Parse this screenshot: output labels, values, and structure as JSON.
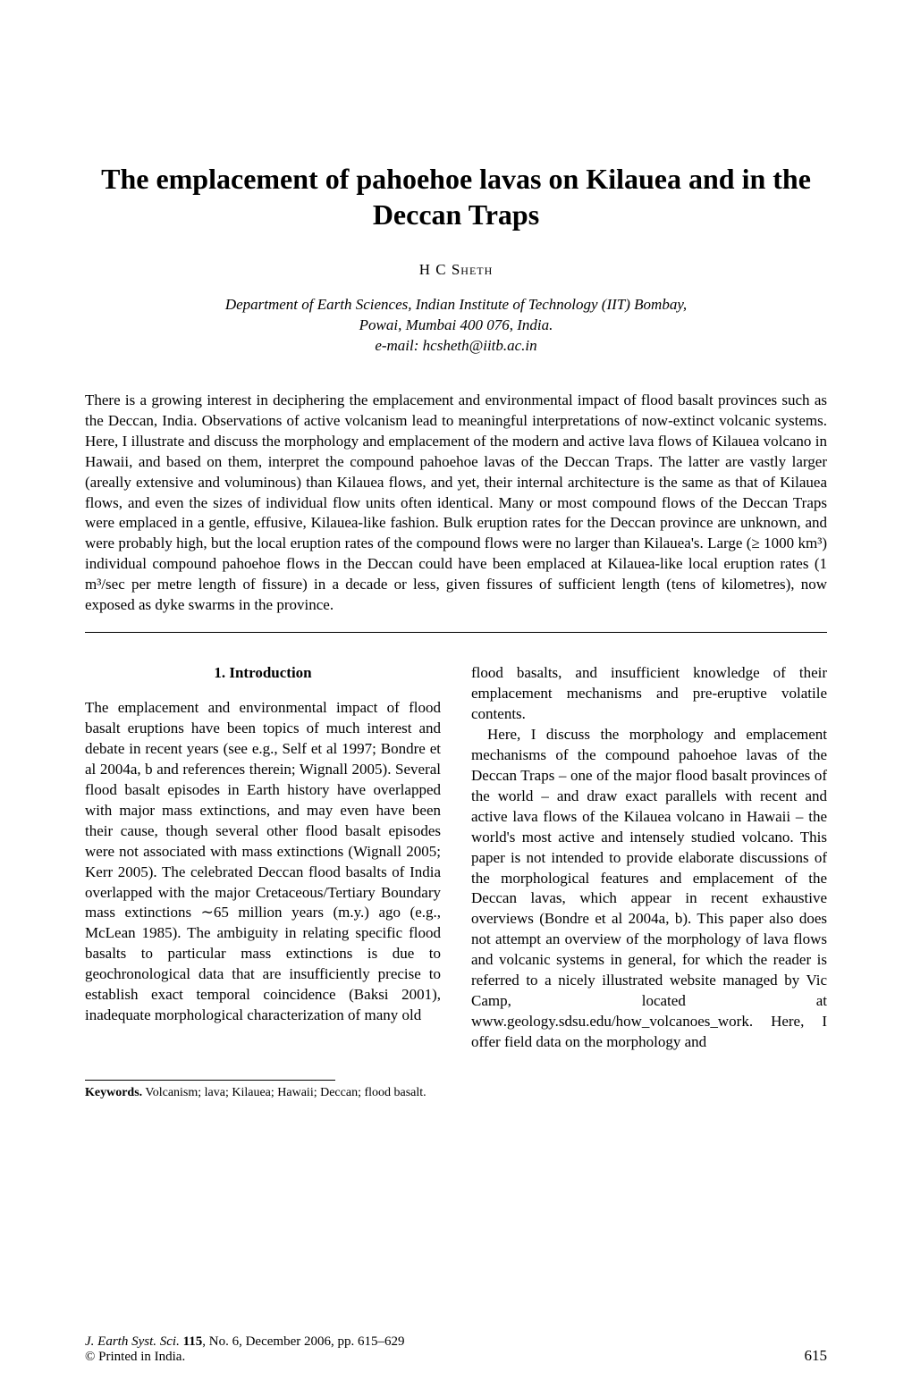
{
  "title": "The emplacement of pahoehoe lavas on Kilauea and in the Deccan Traps",
  "author": "H C Sheth",
  "affiliation_line1": "Department of Earth Sciences, Indian Institute of Technology (IIT) Bombay,",
  "affiliation_line2": "Powai, Mumbai 400 076, India.",
  "affiliation_email": "e-mail: hcsheth@iitb.ac.in",
  "abstract": "There is a growing interest in deciphering the emplacement and environmental impact of flood basalt provinces such as the Deccan, India. Observations of active volcanism lead to meaningful interpretations of now-extinct volcanic systems. Here, I illustrate and discuss the morphology and emplacement of the modern and active lava flows of Kilauea volcano in Hawaii, and based on them, interpret the compound pahoehoe lavas of the Deccan Traps. The latter are vastly larger (areally extensive and voluminous) than Kilauea flows, and yet, their internal architecture is the same as that of Kilauea flows, and even the sizes of individual flow units often identical. Many or most compound flows of the Deccan Traps were emplaced in a gentle, effusive, Kilauea-like fashion. Bulk eruption rates for the Deccan province are unknown, and were probably high, but the local eruption rates of the compound flows were no larger than Kilauea's. Large (≥ 1000 km³) individual compound pahoehoe flows in the Deccan could have been emplaced at Kilauea-like local eruption rates (1 m³/sec per metre length of fissure) in a decade or less, given fissures of sufficient length (tens of kilometres), now exposed as dyke swarms in the province.",
  "section_heading": "1. Introduction",
  "col1_para1": "The emplacement and environmental impact of flood basalt eruptions have been topics of much interest and debate in recent years (see e.g., Self et al 1997; Bondre et al 2004a, b and references therein; Wignall 2005). Several flood basalt episodes in Earth history have overlapped with major mass extinctions, and may even have been their cause, though several other flood basalt episodes were not associated with mass extinctions (Wignall 2005; Kerr 2005). The celebrated Deccan flood basalts of India overlapped with the major Cretaceous/Tertiary Boundary mass extinctions ∼65 million years (m.y.) ago (e.g., McLean 1985). The ambiguity in relating specific flood basalts to particular mass extinctions is due to geochronological data that are insufficiently precise to establish exact temporal coincidence (Baksi 2001), inadequate morphological characterization of many old",
  "col2_para1": "flood basalts, and insufficient knowledge of their emplacement mechanisms and pre-eruptive volatile contents.",
  "col2_para2": "Here, I discuss the morphology and emplacement mechanisms of the compound pahoehoe lavas of the Deccan Traps – one of the major flood basalt provinces of the world – and draw exact parallels with recent and active lava flows of the Kilauea volcano in Hawaii – the world's most active and intensely studied volcano. This paper is not intended to provide elaborate discussions of the morphological features and emplacement of the Deccan lavas, which appear in recent exhaustive overviews (Bondre et al 2004a, b). This paper also does not attempt an overview of the morphology of lava flows and volcanic systems in general, for which the reader is referred to a nicely illustrated website managed by Vic Camp, located at www.geology.sdsu.edu/how_volcanoes_work. Here, I offer field data on the morphology and",
  "keywords_label": "Keywords.",
  "keywords_text": " Volcanism; lava; Kilauea; Hawaii; Deccan; flood basalt.",
  "footer_journal": "J. Earth Syst. Sci. ",
  "footer_vol": "115",
  "footer_rest": ", No. 6, December 2006, pp. 615–629",
  "footer_printed": "© Printed in India.",
  "page_number": "615",
  "colors": {
    "text": "#000000",
    "background": "#ffffff",
    "divider": "#000000"
  },
  "fonts": {
    "family": "Times New Roman",
    "title_size_pt": 24,
    "body_size_pt": 12,
    "keywords_size_pt": 10
  }
}
